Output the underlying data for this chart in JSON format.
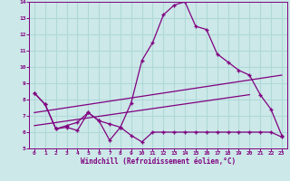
{
  "xlabel": "Windchill (Refroidissement éolien,°C)",
  "xlim": [
    -0.5,
    23.5
  ],
  "ylim": [
    5,
    14
  ],
  "xticks": [
    0,
    1,
    2,
    3,
    4,
    5,
    6,
    7,
    8,
    9,
    10,
    11,
    12,
    13,
    14,
    15,
    16,
    17,
    18,
    19,
    20,
    21,
    22,
    23
  ],
  "yticks": [
    5,
    6,
    7,
    8,
    9,
    10,
    11,
    12,
    13,
    14
  ],
  "bg_color": "#cce8e8",
  "line_color": "#800080",
  "grid_color": "#b0d8d8",
  "line1_x": [
    0,
    1,
    2,
    3,
    4,
    5,
    6,
    7,
    8,
    9,
    10,
    11,
    12,
    13,
    14,
    15,
    16,
    17,
    18,
    19,
    20,
    21,
    22,
    23
  ],
  "line1_y": [
    8.4,
    7.7,
    6.2,
    6.3,
    6.1,
    7.2,
    6.7,
    5.5,
    6.3,
    5.8,
    5.4,
    6.0,
    6.0,
    6.0,
    6.0,
    6.0,
    6.0,
    6.0,
    6.0,
    6.0,
    6.0,
    6.0,
    6.0,
    5.7
  ],
  "line2_x": [
    0,
    1,
    2,
    3,
    4,
    5,
    6,
    7,
    8,
    9,
    10,
    11,
    12,
    13,
    14,
    15,
    16,
    17,
    18,
    19,
    20,
    21,
    22,
    23
  ],
  "line2_y": [
    8.4,
    7.7,
    6.2,
    6.4,
    6.6,
    7.2,
    6.7,
    6.5,
    6.3,
    7.8,
    10.4,
    11.5,
    13.2,
    13.8,
    14.0,
    12.5,
    12.3,
    10.8,
    10.3,
    9.8,
    9.5,
    8.3,
    7.4,
    5.8
  ],
  "line3_x": [
    0,
    20
  ],
  "line3_y": [
    6.4,
    8.3
  ],
  "line4_x": [
    0,
    23
  ],
  "line4_y": [
    7.2,
    9.5
  ]
}
